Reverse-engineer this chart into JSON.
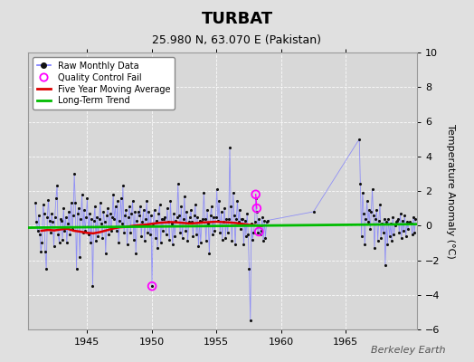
{
  "title": "TURBAT",
  "subtitle": "25.980 N, 63.070 E (Pakistan)",
  "ylabel": "Temperature Anomaly (°C)",
  "attribution": "Berkeley Earth",
  "xlim": [
    1940.5,
    1970.5
  ],
  "ylim": [
    -6,
    10
  ],
  "yticks": [
    -6,
    -4,
    -2,
    0,
    2,
    4,
    6,
    8,
    10
  ],
  "xticks": [
    1945,
    1950,
    1955,
    1960,
    1965
  ],
  "background_color": "#e0e0e0",
  "plot_bg_color": "#d8d8d8",
  "grid_color": "#ffffff",
  "raw_line_color": "#7777ff",
  "raw_marker_color": "#111111",
  "moving_avg_color": "#dd0000",
  "trend_color": "#00bb00",
  "qc_fail_color": "#ff00ff",
  "raw_data": [
    [
      1941.04,
      1.3
    ],
    [
      1941.12,
      0.2
    ],
    [
      1941.21,
      -0.3
    ],
    [
      1941.29,
      0.6
    ],
    [
      1941.38,
      -0.5
    ],
    [
      1941.46,
      -1.5
    ],
    [
      1941.54,
      -1.0
    ],
    [
      1941.63,
      1.2
    ],
    [
      1941.71,
      0.7
    ],
    [
      1941.79,
      -1.5
    ],
    [
      1941.88,
      -2.5
    ],
    [
      1941.96,
      0.5
    ],
    [
      1942.04,
      1.5
    ],
    [
      1942.12,
      0.3
    ],
    [
      1942.21,
      -0.4
    ],
    [
      1942.29,
      0.7
    ],
    [
      1942.38,
      0.2
    ],
    [
      1942.46,
      -1.2
    ],
    [
      1942.54,
      0.5
    ],
    [
      1942.63,
      1.6
    ],
    [
      1942.71,
      2.3
    ],
    [
      1942.79,
      -0.5
    ],
    [
      1942.88,
      -1.0
    ],
    [
      1942.96,
      0.4
    ],
    [
      1943.04,
      0.3
    ],
    [
      1943.12,
      -0.8
    ],
    [
      1943.21,
      1.0
    ],
    [
      1943.29,
      -0.3
    ],
    [
      1943.38,
      0.5
    ],
    [
      1943.46,
      -1.0
    ],
    [
      1943.54,
      0.1
    ],
    [
      1943.63,
      0.8
    ],
    [
      1943.71,
      -0.5
    ],
    [
      1943.79,
      1.3
    ],
    [
      1943.88,
      -0.2
    ],
    [
      1943.96,
      0.6
    ],
    [
      1944.04,
      3.0
    ],
    [
      1944.12,
      1.3
    ],
    [
      1944.21,
      -2.5
    ],
    [
      1944.29,
      0.7
    ],
    [
      1944.38,
      1.0
    ],
    [
      1944.46,
      -1.8
    ],
    [
      1944.54,
      0.4
    ],
    [
      1944.63,
      1.8
    ],
    [
      1944.71,
      -0.4
    ],
    [
      1944.79,
      0.9
    ],
    [
      1944.88,
      -0.3
    ],
    [
      1944.96,
      0.5
    ],
    [
      1945.04,
      1.6
    ],
    [
      1945.12,
      -0.5
    ],
    [
      1945.21,
      0.7
    ],
    [
      1945.29,
      -1.0
    ],
    [
      1945.38,
      0.4
    ],
    [
      1945.46,
      -3.5
    ],
    [
      1945.54,
      0.3
    ],
    [
      1945.63,
      1.1
    ],
    [
      1945.71,
      -0.9
    ],
    [
      1945.79,
      0.5
    ],
    [
      1945.88,
      -0.6
    ],
    [
      1945.96,
      0.4
    ],
    [
      1946.04,
      1.3
    ],
    [
      1946.12,
      0.1
    ],
    [
      1946.21,
      -0.7
    ],
    [
      1946.29,
      0.8
    ],
    [
      1946.38,
      0.2
    ],
    [
      1946.46,
      -1.6
    ],
    [
      1946.54,
      0.6
    ],
    [
      1946.63,
      1.0
    ],
    [
      1946.71,
      -0.5
    ],
    [
      1946.79,
      0.7
    ],
    [
      1946.88,
      -0.3
    ],
    [
      1946.96,
      0.5
    ],
    [
      1947.04,
      1.8
    ],
    [
      1947.12,
      0.4
    ],
    [
      1947.21,
      1.1
    ],
    [
      1947.29,
      -0.3
    ],
    [
      1947.38,
      1.4
    ],
    [
      1947.46,
      -1.0
    ],
    [
      1947.54,
      0.3
    ],
    [
      1947.63,
      1.6
    ],
    [
      1947.71,
      0.1
    ],
    [
      1947.79,
      2.3
    ],
    [
      1947.88,
      -0.4
    ],
    [
      1947.96,
      0.6
    ],
    [
      1948.04,
      0.9
    ],
    [
      1948.12,
      -1.1
    ],
    [
      1948.21,
      0.5
    ],
    [
      1948.29,
      1.1
    ],
    [
      1948.38,
      -0.4
    ],
    [
      1948.46,
      0.7
    ],
    [
      1948.54,
      1.4
    ],
    [
      1948.63,
      -0.8
    ],
    [
      1948.71,
      0.8
    ],
    [
      1948.79,
      -1.6
    ],
    [
      1948.88,
      0.3
    ],
    [
      1948.96,
      0.8
    ],
    [
      1949.04,
      0.6
    ],
    [
      1949.12,
      1.1
    ],
    [
      1949.21,
      -0.6
    ],
    [
      1949.29,
      0.2
    ],
    [
      1949.38,
      0.9
    ],
    [
      1949.46,
      -0.9
    ],
    [
      1949.54,
      0.4
    ],
    [
      1949.63,
      1.4
    ],
    [
      1949.71,
      -0.4
    ],
    [
      1949.79,
      0.8
    ],
    [
      1949.88,
      -0.5
    ],
    [
      1949.96,
      0.6
    ],
    [
      1950.04,
      -3.5
    ],
    [
      1950.12,
      0.1
    ],
    [
      1950.21,
      0.9
    ],
    [
      1950.29,
      -0.7
    ],
    [
      1950.38,
      0.3
    ],
    [
      1950.46,
      -1.3
    ],
    [
      1950.54,
      0.7
    ],
    [
      1950.63,
      1.2
    ],
    [
      1950.71,
      -1.0
    ],
    [
      1950.79,
      0.4
    ],
    [
      1950.88,
      -0.3
    ],
    [
      1950.96,
      0.4
    ],
    [
      1951.04,
      0.5
    ],
    [
      1951.12,
      -0.5
    ],
    [
      1951.21,
      1.0
    ],
    [
      1951.29,
      0.2
    ],
    [
      1951.38,
      -0.8
    ],
    [
      1951.46,
      1.4
    ],
    [
      1951.54,
      0.1
    ],
    [
      1951.63,
      -1.1
    ],
    [
      1951.71,
      0.7
    ],
    [
      1951.79,
      -0.6
    ],
    [
      1951.88,
      0.3
    ],
    [
      1951.96,
      0.5
    ],
    [
      1952.04,
      2.4
    ],
    [
      1952.12,
      0.6
    ],
    [
      1952.21,
      -0.4
    ],
    [
      1952.29,
      1.1
    ],
    [
      1952.38,
      -0.7
    ],
    [
      1952.46,
      0.4
    ],
    [
      1952.54,
      1.7
    ],
    [
      1952.63,
      -0.3
    ],
    [
      1952.71,
      0.8
    ],
    [
      1952.79,
      -0.9
    ],
    [
      1952.88,
      0.2
    ],
    [
      1952.96,
      0.5
    ],
    [
      1953.04,
      0.9
    ],
    [
      1953.12,
      0.2
    ],
    [
      1953.21,
      -0.6
    ],
    [
      1953.29,
      0.6
    ],
    [
      1953.38,
      1.2
    ],
    [
      1953.46,
      -0.5
    ],
    [
      1953.54,
      0.5
    ],
    [
      1953.63,
      -1.2
    ],
    [
      1953.71,
      0.3
    ],
    [
      1953.79,
      -1.0
    ],
    [
      1953.88,
      0.2
    ],
    [
      1953.96,
      0.4
    ],
    [
      1954.04,
      1.9
    ],
    [
      1954.12,
      0.4
    ],
    [
      1954.21,
      -0.9
    ],
    [
      1954.29,
      0.9
    ],
    [
      1954.38,
      0.1
    ],
    [
      1954.46,
      -1.6
    ],
    [
      1954.54,
      0.6
    ],
    [
      1954.63,
      1.1
    ],
    [
      1954.71,
      -0.5
    ],
    [
      1954.79,
      0.5
    ],
    [
      1954.88,
      -0.3
    ],
    [
      1954.96,
      0.5
    ],
    [
      1955.04,
      2.1
    ],
    [
      1955.12,
      0.3
    ],
    [
      1955.21,
      1.4
    ],
    [
      1955.29,
      -0.4
    ],
    [
      1955.38,
      0.8
    ],
    [
      1955.46,
      -0.8
    ],
    [
      1955.54,
      0.2
    ],
    [
      1955.63,
      1.0
    ],
    [
      1955.71,
      -0.7
    ],
    [
      1955.79,
      0.4
    ],
    [
      1955.88,
      -0.4
    ],
    [
      1955.96,
      0.4
    ],
    [
      1956.04,
      4.5
    ],
    [
      1956.12,
      1.1
    ],
    [
      1956.21,
      -0.9
    ],
    [
      1956.29,
      1.9
    ],
    [
      1956.38,
      0.6
    ],
    [
      1956.46,
      -1.1
    ],
    [
      1956.54,
      0.4
    ],
    [
      1956.63,
      1.4
    ],
    [
      1956.71,
      0.2
    ],
    [
      1956.79,
      0.9
    ],
    [
      1956.88,
      -0.2
    ],
    [
      1956.96,
      0.4
    ],
    [
      1957.04,
      0.4
    ],
    [
      1957.12,
      -1.1
    ],
    [
      1957.21,
      0.3
    ],
    [
      1957.29,
      -0.6
    ],
    [
      1957.38,
      0.7
    ],
    [
      1957.46,
      -0.5
    ],
    [
      1957.54,
      -2.5
    ],
    [
      1957.63,
      -5.5
    ],
    [
      1957.71,
      0.1
    ],
    [
      1957.79,
      -0.8
    ],
    [
      1957.88,
      -0.4
    ],
    [
      1957.96,
      0.2
    ],
    [
      1958.04,
      1.6
    ],
    [
      1958.12,
      0.8
    ],
    [
      1958.21,
      -0.4
    ],
    [
      1958.29,
      0.4
    ],
    [
      1958.38,
      -0.5
    ],
    [
      1958.46,
      -0.3
    ],
    [
      1958.54,
      0.5
    ],
    [
      1958.63,
      -0.9
    ],
    [
      1958.71,
      0.3
    ],
    [
      1958.79,
      -0.7
    ],
    [
      1958.88,
      0.2
    ],
    [
      1958.96,
      0.3
    ],
    [
      1962.5,
      0.8
    ],
    [
      1966.04,
      5.0
    ],
    [
      1966.12,
      2.4
    ],
    [
      1966.21,
      -0.6
    ],
    [
      1966.29,
      1.9
    ],
    [
      1966.38,
      0.7
    ],
    [
      1966.46,
      -1.1
    ],
    [
      1966.54,
      0.4
    ],
    [
      1966.63,
      1.4
    ],
    [
      1966.71,
      0.2
    ],
    [
      1966.79,
      0.9
    ],
    [
      1966.88,
      -0.2
    ],
    [
      1966.96,
      0.8
    ],
    [
      1967.04,
      2.1
    ],
    [
      1967.12,
      0.6
    ],
    [
      1967.21,
      -1.3
    ],
    [
      1967.29,
      0.4
    ],
    [
      1967.38,
      0.9
    ],
    [
      1967.46,
      -0.9
    ],
    [
      1967.54,
      0.3
    ],
    [
      1967.63,
      1.2
    ],
    [
      1967.71,
      -0.7
    ],
    [
      1967.79,
      0.1
    ],
    [
      1967.88,
      -0.4
    ],
    [
      1967.96,
      0.4
    ],
    [
      1968.04,
      -2.3
    ],
    [
      1968.12,
      0.2
    ],
    [
      1968.21,
      -1.1
    ],
    [
      1968.29,
      0.4
    ],
    [
      1968.38,
      -0.6
    ],
    [
      1968.46,
      0.1
    ],
    [
      1968.54,
      -0.9
    ],
    [
      1968.63,
      0.5
    ],
    [
      1968.71,
      -0.5
    ],
    [
      1968.79,
      0.0
    ],
    [
      1968.88,
      0.2
    ],
    [
      1968.96,
      0.3
    ],
    [
      1969.04,
      0.4
    ],
    [
      1969.12,
      -0.4
    ],
    [
      1969.21,
      0.7
    ],
    [
      1969.29,
      -0.7
    ],
    [
      1969.38,
      0.3
    ],
    [
      1969.46,
      -0.3
    ],
    [
      1969.54,
      0.6
    ],
    [
      1969.63,
      -0.6
    ],
    [
      1969.71,
      0.2
    ],
    [
      1969.79,
      -0.2
    ],
    [
      1969.88,
      0.1
    ],
    [
      1969.96,
      0.2
    ],
    [
      1970.04,
      0.1
    ],
    [
      1970.12,
      -0.5
    ],
    [
      1970.21,
      0.5
    ],
    [
      1970.29,
      -0.4
    ],
    [
      1970.38,
      0.4
    ]
  ],
  "qc_fail_points": [
    [
      1950.04,
      -3.5
    ],
    [
      1958.04,
      1.8
    ],
    [
      1958.12,
      1.0
    ],
    [
      1958.29,
      -0.35
    ]
  ],
  "moving_avg_x": [
    1941.5,
    1942.0,
    1942.5,
    1943.0,
    1943.5,
    1944.0,
    1944.5,
    1945.0,
    1945.5,
    1946.0,
    1946.5,
    1947.0,
    1947.5,
    1948.0,
    1948.5,
    1949.0,
    1949.5,
    1950.0,
    1950.5,
    1951.0,
    1951.5,
    1952.0,
    1952.5,
    1953.0,
    1953.5,
    1954.0,
    1954.5,
    1955.0,
    1955.5,
    1956.0,
    1956.5,
    1957.0,
    1957.5,
    1958.0,
    1958.5
  ],
  "moving_avg_y": [
    -0.3,
    -0.25,
    -0.28,
    -0.22,
    -0.18,
    -0.3,
    -0.35,
    -0.42,
    -0.45,
    -0.38,
    -0.28,
    -0.18,
    -0.1,
    -0.08,
    -0.02,
    0.02,
    0.05,
    0.1,
    0.15,
    0.18,
    0.2,
    0.18,
    0.15,
    0.12,
    0.15,
    0.18,
    0.2,
    0.22,
    0.2,
    0.18,
    0.15,
    0.1,
    0.05,
    0.02,
    -0.02
  ],
  "trend_x": [
    1940.5,
    1970.5
  ],
  "trend_y": [
    -0.12,
    0.08
  ]
}
